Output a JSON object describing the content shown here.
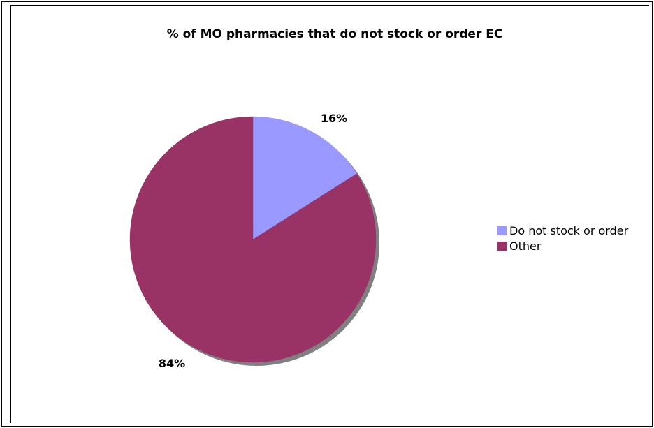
{
  "chart_data": {
    "type": "pie",
    "title": "% of MO pharmacies that do not stock or order EC",
    "slices": [
      {
        "label": "Do not stock or order",
        "value": 16,
        "data_label": "16%",
        "color": "#9999FF"
      },
      {
        "label": "Other",
        "value": 84,
        "data_label": "84%",
        "color": "#993366"
      }
    ],
    "legend_position": "right",
    "start_angle": "top",
    "direction": "clockwise"
  }
}
